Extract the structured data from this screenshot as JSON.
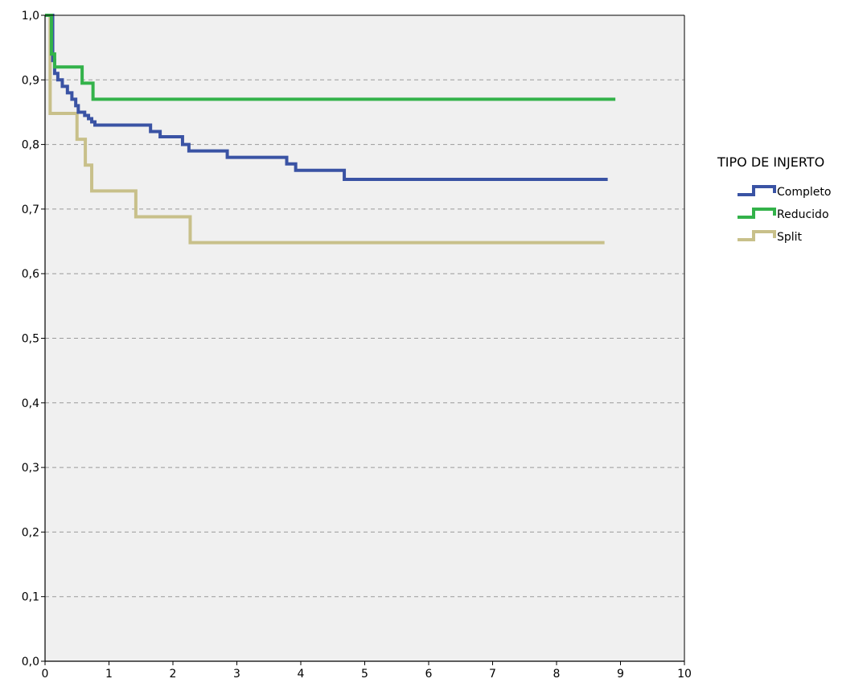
{
  "chart_data": {
    "type": "line",
    "subtype": "kaplan-meier step",
    "title": "",
    "xlabel": "",
    "ylabel": "",
    "xlim": [
      0,
      10
    ],
    "ylim": [
      0.0,
      1.0
    ],
    "x_ticks": [
      "0",
      "1",
      "2",
      "3",
      "4",
      "5",
      "6",
      "7",
      "8",
      "9",
      "10"
    ],
    "y_ticks": [
      "0,0",
      "0,1",
      "0,2",
      "0,3",
      "0,4",
      "0,5",
      "0,6",
      "0,7",
      "0,8",
      "0,9",
      "1,0"
    ],
    "grid": "horizontal dashed",
    "legend": {
      "title": "TIPO DE INJERTO",
      "placement": "right"
    },
    "series": [
      {
        "name": "Completo",
        "color": "#3a53a4",
        "steps": [
          [
            0,
            1.0
          ],
          [
            0.12,
            0.93
          ],
          [
            0.15,
            0.91
          ],
          [
            0.2,
            0.9
          ],
          [
            0.27,
            0.89
          ],
          [
            0.35,
            0.88
          ],
          [
            0.42,
            0.87
          ],
          [
            0.48,
            0.86
          ],
          [
            0.52,
            0.85
          ],
          [
            0.62,
            0.845
          ],
          [
            0.68,
            0.84
          ],
          [
            0.73,
            0.835
          ],
          [
            0.78,
            0.83
          ],
          [
            1.65,
            0.82
          ],
          [
            1.8,
            0.812
          ],
          [
            2.15,
            0.8
          ],
          [
            2.25,
            0.79
          ],
          [
            2.85,
            0.78
          ],
          [
            3.78,
            0.77
          ],
          [
            3.92,
            0.76
          ],
          [
            4.68,
            0.746
          ],
          [
            8.8,
            0.746
          ]
        ]
      },
      {
        "name": "Reducido",
        "color": "#33b24a",
        "steps": [
          [
            0,
            1.0
          ],
          [
            0.1,
            0.94
          ],
          [
            0.15,
            0.92
          ],
          [
            0.58,
            0.895
          ],
          [
            0.75,
            0.87
          ],
          [
            8.92,
            0.87
          ]
        ]
      },
      {
        "name": "Split",
        "color": "#c8c08a",
        "steps": [
          [
            0,
            1.0
          ],
          [
            0.08,
            0.848
          ],
          [
            0.5,
            0.808
          ],
          [
            0.63,
            0.768
          ],
          [
            0.73,
            0.728
          ],
          [
            1.42,
            0.688
          ],
          [
            2.27,
            0.648
          ],
          [
            8.75,
            0.648
          ]
        ]
      }
    ]
  }
}
